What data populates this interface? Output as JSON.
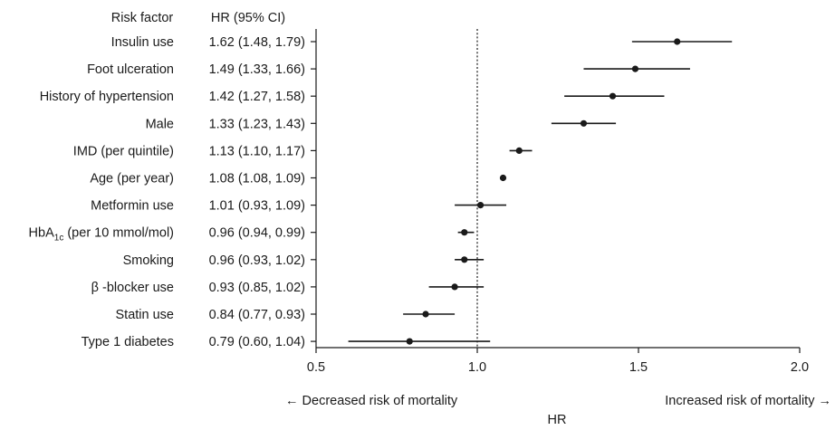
{
  "chart_data": {
    "type": "forest",
    "headers": {
      "factor": "Risk factor",
      "hr": "HR (95% CI)"
    },
    "rows": [
      {
        "label": "Insulin use",
        "hr": 1.62,
        "lo": 1.48,
        "hi": 1.79,
        "text": "1.62 (1.48, 1.79)"
      },
      {
        "label": "Foot ulceration",
        "hr": 1.49,
        "lo": 1.33,
        "hi": 1.66,
        "text": "1.49 (1.33, 1.66)"
      },
      {
        "label": "History of hypertension",
        "hr": 1.42,
        "lo": 1.27,
        "hi": 1.58,
        "text": "1.42 (1.27, 1.58)"
      },
      {
        "label": "Male",
        "hr": 1.33,
        "lo": 1.23,
        "hi": 1.43,
        "text": "1.33 (1.23, 1.43)"
      },
      {
        "label": "IMD (per quintile)",
        "hr": 1.13,
        "lo": 1.1,
        "hi": 1.17,
        "text": "1.13 (1.10, 1.17)"
      },
      {
        "label": "Age (per year)",
        "hr": 1.08,
        "lo": 1.08,
        "hi": 1.09,
        "text": "1.08 (1.08, 1.09)"
      },
      {
        "label": "Metformin use",
        "hr": 1.01,
        "lo": 0.93,
        "hi": 1.09,
        "text": "1.01 (0.93, 1.09)"
      },
      {
        "label": "HbA1c (per 10 mmol/mol)",
        "label_main": "HbA",
        "label_sub": "1c",
        "label_rest": " (per 10 mmol/mol)",
        "hr": 0.96,
        "lo": 0.94,
        "hi": 0.99,
        "text": "0.96 (0.94, 0.99)"
      },
      {
        "label": "Smoking",
        "hr": 0.96,
        "lo": 0.93,
        "hi": 1.02,
        "text": "0.96 (0.93, 1.02)"
      },
      {
        "label": "β -blocker use",
        "hr": 0.93,
        "lo": 0.85,
        "hi": 1.02,
        "text": "0.93 (0.85, 1.02)"
      },
      {
        "label": "Statin use",
        "hr": 0.84,
        "lo": 0.77,
        "hi": 0.93,
        "text": "0.84 (0.77, 0.93)"
      },
      {
        "label": "Type 1 diabetes",
        "hr": 0.79,
        "lo": 0.6,
        "hi": 1.04,
        "text": "0.79 (0.60, 1.04)"
      }
    ],
    "x_axis": {
      "label": "HR",
      "ticks": [
        0.5,
        1.0,
        1.5,
        2.0
      ],
      "tick_labels": [
        "0.5",
        "1.0",
        "1.5",
        "2.0"
      ],
      "range": [
        0.5,
        2.0
      ],
      "reference_line": 1.0
    },
    "annotations": {
      "left": "← Decreased risk of mortality",
      "right": "Increased risk of mortality →"
    },
    "colors": {
      "ink": "#1a1a1a",
      "background": "#ffffff"
    }
  }
}
